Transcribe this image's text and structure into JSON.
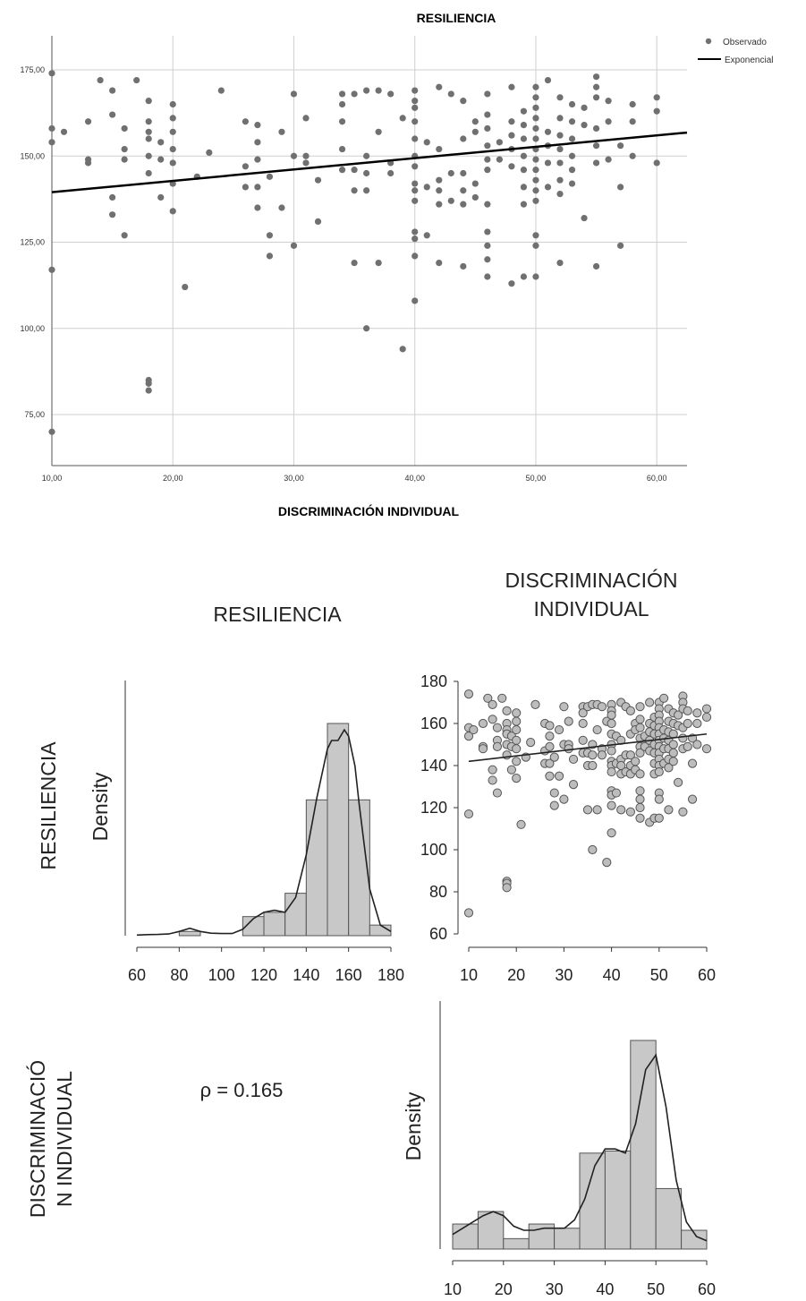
{
  "chart_data": [
    {
      "type": "scatter",
      "title": "RESILIENCIA",
      "xlabel": "DISCRIMINACIÓN INDIVIDUAL",
      "ylabel": "",
      "xlim": [
        10,
        62.5
      ],
      "ylim": [
        60,
        188
      ],
      "x_ticks": [
        "10,00",
        "20,00",
        "30,00",
        "40,00",
        "50,00",
        "60,00"
      ],
      "y_ticks": [
        "75,00",
        "100,00",
        "125,00",
        "150,00",
        "175,00"
      ],
      "grid": true,
      "legend_position": "top-right",
      "series": [
        {
          "name": "Observado",
          "color": "#707070",
          "points": [
            [
              10,
              174
            ],
            [
              10,
              158
            ],
            [
              10,
              154
            ],
            [
              10,
              117
            ],
            [
              10,
              70
            ],
            [
              11,
              157
            ],
            [
              13,
              160
            ],
            [
              13,
              149
            ],
            [
              13,
              148
            ],
            [
              14,
              172
            ],
            [
              15,
              169
            ],
            [
              15,
              162
            ],
            [
              15,
              138
            ],
            [
              15,
              133
            ],
            [
              16,
              158
            ],
            [
              16,
              152
            ],
            [
              16,
              149
            ],
            [
              16,
              127
            ],
            [
              17,
              172
            ],
            [
              18,
              166
            ],
            [
              18,
              160
            ],
            [
              18,
              157
            ],
            [
              18,
              155
            ],
            [
              18,
              150
            ],
            [
              18,
              145
            ],
            [
              18,
              85
            ],
            [
              18,
              84
            ],
            [
              18,
              82
            ],
            [
              19,
              154
            ],
            [
              19,
              149
            ],
            [
              19,
              138
            ],
            [
              20,
              165
            ],
            [
              20,
              161
            ],
            [
              20,
              157
            ],
            [
              20,
              152
            ],
            [
              20,
              148
            ],
            [
              20,
              142
            ],
            [
              20,
              134
            ],
            [
              21,
              112
            ],
            [
              22,
              144
            ],
            [
              23,
              151
            ],
            [
              24,
              169
            ],
            [
              26,
              160
            ],
            [
              26,
              147
            ],
            [
              26,
              141
            ],
            [
              27,
              159
            ],
            [
              27,
              154
            ],
            [
              27,
              149
            ],
            [
              27,
              141
            ],
            [
              27,
              135
            ],
            [
              28,
              144
            ],
            [
              28,
              127
            ],
            [
              28,
              121
            ],
            [
              29,
              157
            ],
            [
              29,
              135
            ],
            [
              30,
              168
            ],
            [
              30,
              150
            ],
            [
              30,
              124
            ],
            [
              31,
              161
            ],
            [
              31,
              150
            ],
            [
              31,
              148
            ],
            [
              32,
              143
            ],
            [
              32,
              131
            ],
            [
              34,
              168
            ],
            [
              34,
              165
            ],
            [
              34,
              160
            ],
            [
              34,
              152
            ],
            [
              34,
              146
            ],
            [
              35,
              168
            ],
            [
              35,
              146
            ],
            [
              35,
              140
            ],
            [
              35,
              119
            ],
            [
              36,
              169
            ],
            [
              36,
              150
            ],
            [
              36,
              145
            ],
            [
              36,
              140
            ],
            [
              36,
              100
            ],
            [
              37,
              169
            ],
            [
              37,
              157
            ],
            [
              37,
              119
            ],
            [
              38,
              168
            ],
            [
              38,
              148
            ],
            [
              38,
              145
            ],
            [
              39,
              161
            ],
            [
              39,
              94
            ],
            [
              40,
              169
            ],
            [
              40,
              166
            ],
            [
              40,
              164
            ],
            [
              40,
              160
            ],
            [
              40,
              155
            ],
            [
              40,
              150
            ],
            [
              40,
              147
            ],
            [
              40,
              142
            ],
            [
              40,
              140
            ],
            [
              40,
              137
            ],
            [
              40,
              128
            ],
            [
              40,
              126
            ],
            [
              40,
              121
            ],
            [
              40,
              108
            ],
            [
              41,
              154
            ],
            [
              41,
              141
            ],
            [
              41,
              127
            ],
            [
              42,
              170
            ],
            [
              42,
              152
            ],
            [
              42,
              143
            ],
            [
              42,
              140
            ],
            [
              42,
              136
            ],
            [
              42,
              119
            ],
            [
              43,
              168
            ],
            [
              43,
              145
            ],
            [
              43,
              137
            ],
            [
              44,
              166
            ],
            [
              44,
              155
            ],
            [
              44,
              145
            ],
            [
              44,
              140
            ],
            [
              44,
              136
            ],
            [
              44,
              118
            ],
            [
              45,
              160
            ],
            [
              45,
              157
            ],
            [
              45,
              142
            ],
            [
              45,
              138
            ],
            [
              46,
              168
            ],
            [
              46,
              162
            ],
            [
              46,
              158
            ],
            [
              46,
              153
            ],
            [
              46,
              149
            ],
            [
              46,
              146
            ],
            [
              46,
              136
            ],
            [
              46,
              128
            ],
            [
              46,
              124
            ],
            [
              46,
              120
            ],
            [
              46,
              115
            ],
            [
              47,
              154
            ],
            [
              47,
              149
            ],
            [
              48,
              170
            ],
            [
              48,
              160
            ],
            [
              48,
              156
            ],
            [
              48,
              152
            ],
            [
              48,
              147
            ],
            [
              48,
              113
            ],
            [
              49,
              163
            ],
            [
              49,
              159
            ],
            [
              49,
              155
            ],
            [
              49,
              150
            ],
            [
              49,
              146
            ],
            [
              49,
              141
            ],
            [
              49,
              136
            ],
            [
              49,
              115
            ],
            [
              50,
              170
            ],
            [
              50,
              167
            ],
            [
              50,
              164
            ],
            [
              50,
              161
            ],
            [
              50,
              158
            ],
            [
              50,
              155
            ],
            [
              50,
              152
            ],
            [
              50,
              149
            ],
            [
              50,
              146
            ],
            [
              50,
              143
            ],
            [
              50,
              140
            ],
            [
              50,
              137
            ],
            [
              50,
              127
            ],
            [
              50,
              124
            ],
            [
              50,
              115
            ],
            [
              51,
              172
            ],
            [
              51,
              157
            ],
            [
              51,
              153
            ],
            [
              51,
              148
            ],
            [
              51,
              141
            ],
            [
              52,
              167
            ],
            [
              52,
              161
            ],
            [
              52,
              156
            ],
            [
              52,
              152
            ],
            [
              52,
              148
            ],
            [
              52,
              143
            ],
            [
              52,
              139
            ],
            [
              52,
              119
            ],
            [
              53,
              165
            ],
            [
              53,
              160
            ],
            [
              53,
              155
            ],
            [
              53,
              150
            ],
            [
              53,
              146
            ],
            [
              53,
              142
            ],
            [
              54,
              164
            ],
            [
              54,
              159
            ],
            [
              54,
              132
            ],
            [
              55,
              173
            ],
            [
              55,
              170
            ],
            [
              55,
              167
            ],
            [
              55,
              158
            ],
            [
              55,
              153
            ],
            [
              55,
              148
            ],
            [
              55,
              118
            ],
            [
              56,
              166
            ],
            [
              56,
              160
            ],
            [
              56,
              149
            ],
            [
              57,
              153
            ],
            [
              57,
              141
            ],
            [
              57,
              124
            ],
            [
              58,
              165
            ],
            [
              58,
              160
            ],
            [
              58,
              150
            ],
            [
              60,
              167
            ],
            [
              60,
              163
            ],
            [
              60,
              148
            ]
          ]
        },
        {
          "name": "Exponencial",
          "color": "#000000",
          "x": [
            10,
            62.5
          ],
          "y": [
            139.5,
            156.8
          ]
        }
      ]
    },
    {
      "type": "scatter-matrix",
      "column_labels": [
        "RESILIENCIA",
        "DISCRIMINACIÓN INDIVIDUAL"
      ],
      "row_labels": [
        "RESILIENCIA",
        "DISCRIMINACIÓN INDIVIDUAL"
      ],
      "panels": [
        {
          "type": "histogram",
          "position": "top-left",
          "ylabel": "Density",
          "x_ticks": [
            "60",
            "80",
            "100",
            "120",
            "140",
            "160",
            "180"
          ],
          "bin_edges": [
            60,
            70,
            80,
            90,
            100,
            110,
            120,
            130,
            140,
            150,
            160,
            170,
            180
          ],
          "relative_heights": [
            0.0,
            0.0,
            0.02,
            0.0,
            0.0,
            0.09,
            0.11,
            0.2,
            0.64,
            1.0,
            0.64,
            0.05
          ],
          "density_curve": {
            "x": [
              60,
              65,
              70,
              75,
              80,
              85,
              90,
              95,
              100,
              105,
              110,
              115,
              120,
              125,
              130,
              135,
              140,
              145,
              150,
              152,
              155,
              158,
              160,
              163,
              165,
              170,
              175,
              180
            ],
            "y": [
              0.003,
              0.005,
              0.006,
              0.008,
              0.02,
              0.035,
              0.02,
              0.012,
              0.01,
              0.01,
              0.03,
              0.08,
              0.11,
              0.12,
              0.11,
              0.18,
              0.38,
              0.65,
              0.88,
              0.92,
              0.92,
              0.97,
              0.94,
              0.8,
              0.62,
              0.22,
              0.05,
              0.02
            ]
          }
        },
        {
          "type": "scatter",
          "position": "top-right",
          "x_ticks": [
            "10",
            "20",
            "30",
            "40",
            "50",
            "60"
          ],
          "y_ticks": [
            "60",
            "80",
            "100",
            "120",
            "140",
            "160",
            "180"
          ],
          "xlim": [
            8,
            60.5
          ],
          "ylim": [
            60,
            180
          ],
          "fit_line": {
            "x": [
              10,
              60
            ],
            "y": [
              142,
              155
            ]
          }
        },
        {
          "type": "text",
          "position": "bottom-left",
          "label": "ρ = 0.165"
        },
        {
          "type": "histogram",
          "position": "bottom-right",
          "ylabel": "Density",
          "x_ticks": [
            "10",
            "20",
            "30",
            "40",
            "50",
            "60"
          ],
          "bin_edges": [
            10,
            15,
            20,
            25,
            30,
            35,
            40,
            45,
            50,
            55,
            60
          ],
          "relative_heights": [
            0.12,
            0.18,
            0.05,
            0.12,
            0.1,
            0.46,
            0.47,
            1.0,
            0.29,
            0.09
          ],
          "density_curve": {
            "x": [
              10,
              12,
              14,
              16,
              18,
              20,
              22,
              24,
              26,
              28,
              30,
              32,
              34,
              36,
              38,
              40,
              42,
              44,
              46,
              48,
              50,
              52,
              54,
              56,
              58,
              60
            ],
            "y": [
              0.07,
              0.1,
              0.13,
              0.16,
              0.18,
              0.16,
              0.11,
              0.09,
              0.09,
              0.1,
              0.1,
              0.1,
              0.14,
              0.24,
              0.4,
              0.48,
              0.48,
              0.46,
              0.6,
              0.86,
              0.93,
              0.68,
              0.33,
              0.13,
              0.06,
              0.04
            ]
          }
        }
      ]
    }
  ]
}
